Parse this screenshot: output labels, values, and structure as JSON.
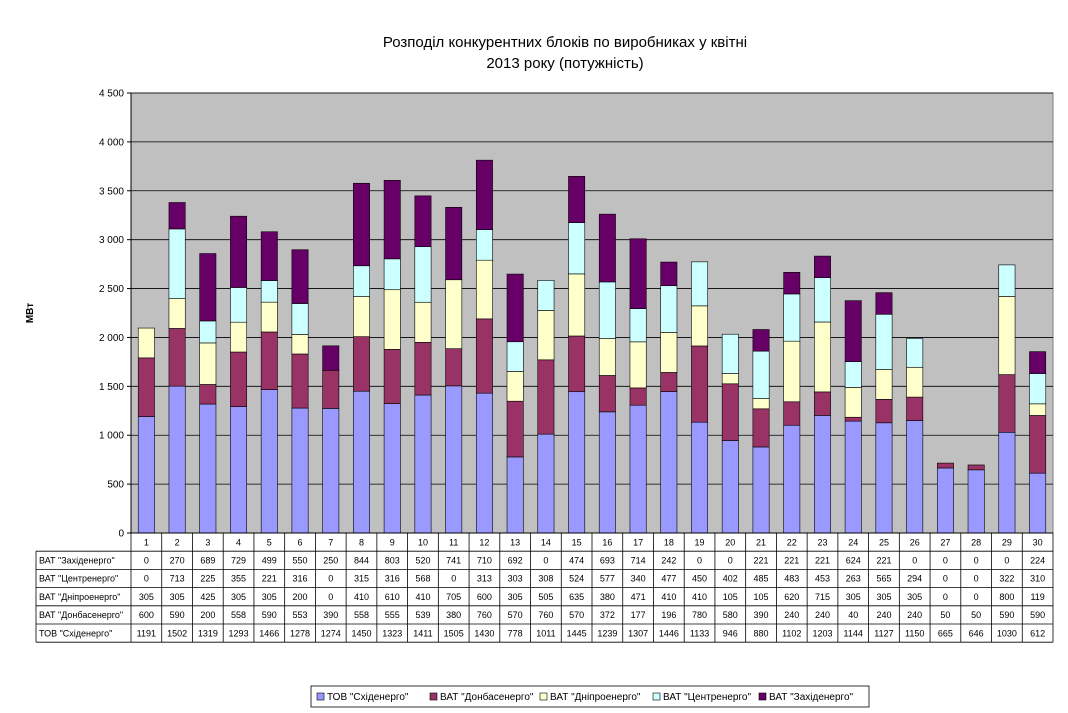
{
  "chart_data": {
    "type": "bar",
    "stacked": true,
    "title_lines": [
      "Розподіл конкурентних блоків по виробниках у квітні",
      "2013 року (потужність)"
    ],
    "ylabel": "МВт",
    "ylim": [
      0,
      4500
    ],
    "yticks": [
      0,
      500,
      1000,
      1500,
      2000,
      2500,
      3000,
      3500,
      4000,
      4500
    ],
    "ytick_labels": [
      "0",
      "500",
      "1 000",
      "1 500",
      "2 000",
      "2 500",
      "3 000",
      "3 500",
      "4 000",
      "4 500"
    ],
    "grid": true,
    "legend_position": "bottom",
    "categories": [
      "1",
      "2",
      "3",
      "4",
      "5",
      "6",
      "7",
      "8",
      "9",
      "10",
      "11",
      "12",
      "13",
      "14",
      "15",
      "16",
      "17",
      "18",
      "19",
      "20",
      "21",
      "22",
      "23",
      "24",
      "25",
      "26",
      "27",
      "28",
      "29",
      "30"
    ],
    "series": [
      {
        "name": "ТОВ \"Східенерго\"",
        "color": "#9999FF",
        "values": [
          1191,
          1502,
          1319,
          1293,
          1466,
          1278,
          1274,
          1450,
          1323,
          1411,
          1505,
          1430,
          778,
          1011,
          1445,
          1239,
          1307,
          1446,
          1133,
          946,
          880,
          1102,
          1203,
          1144,
          1127,
          1150,
          665,
          646,
          1030,
          612
        ]
      },
      {
        "name": "ВАТ \"Донбасенерго\"",
        "color": "#993366",
        "values": [
          600,
          590,
          200,
          558,
          590,
          553,
          390,
          558,
          555,
          539,
          380,
          760,
          570,
          760,
          570,
          372,
          177,
          196,
          780,
          580,
          390,
          240,
          240,
          40,
          240,
          240,
          50,
          50,
          590,
          590
        ]
      },
      {
        "name": "ВАТ \"Дніпроенерго\"",
        "color": "#FFFFCC",
        "values": [
          305,
          305,
          425,
          305,
          305,
          200,
          0,
          410,
          610,
          410,
          705,
          600,
          305,
          505,
          635,
          380,
          471,
          410,
          410,
          105,
          105,
          620,
          715,
          305,
          305,
          305,
          0,
          0,
          800,
          119
        ]
      },
      {
        "name": "ВАТ \"Центренерго\"",
        "color": "#CCFFFF",
        "values": [
          0,
          713,
          225,
          355,
          221,
          316,
          0,
          315,
          316,
          568,
          0,
          313,
          303,
          308,
          524,
          577,
          340,
          477,
          450,
          402,
          485,
          483,
          453,
          263,
          565,
          294,
          0,
          0,
          322,
          310
        ]
      },
      {
        "name": "ВАТ \"Західенерго\"",
        "color": "#660066",
        "values": [
          0,
          270,
          689,
          729,
          499,
          550,
          250,
          844,
          803,
          520,
          741,
          710,
          692,
          0,
          474,
          693,
          714,
          242,
          0,
          0,
          221,
          221,
          221,
          624,
          221,
          0,
          0,
          0,
          0,
          224
        ]
      }
    ],
    "table_row_order": [
      4,
      3,
      2,
      1,
      0
    ]
  }
}
